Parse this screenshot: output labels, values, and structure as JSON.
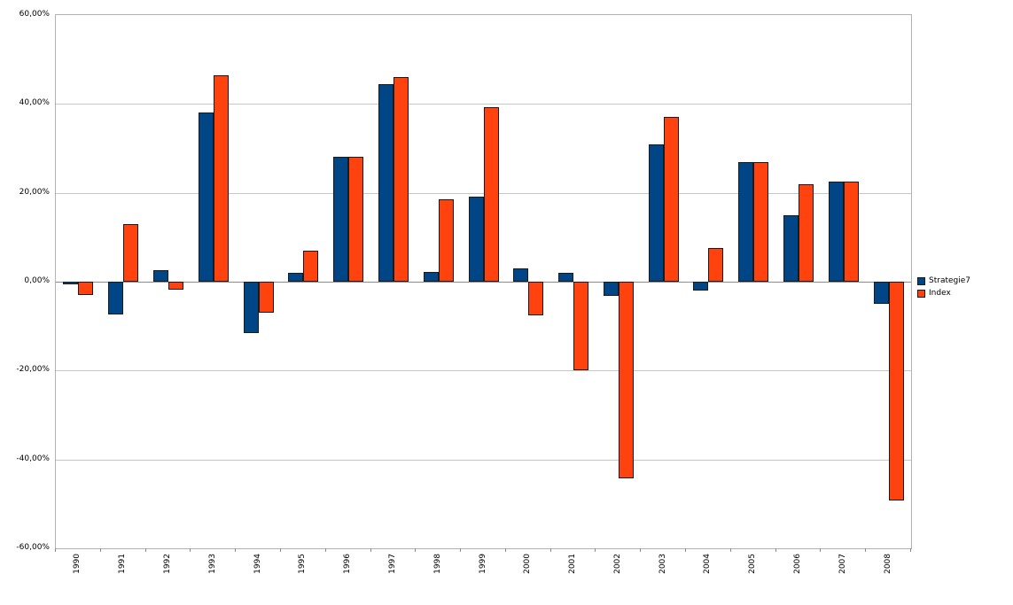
{
  "chart_data": {
    "type": "bar",
    "title": "",
    "categories": [
      "1990",
      "1991",
      "1992",
      "1993",
      "1994",
      "1995",
      "1996",
      "1997",
      "1998",
      "1999",
      "2000",
      "2001",
      "2002",
      "2003",
      "2004",
      "2005",
      "2006",
      "2007",
      "2008"
    ],
    "series": [
      {
        "name": "Strategie7",
        "color": "#004586",
        "values": [
          -0.5,
          -7.3,
          2.5,
          38.0,
          -11.6,
          2.0,
          28.2,
          44.4,
          2.2,
          19.1,
          3.0,
          2.0,
          -3.2,
          30.9,
          -2.0,
          27.0,
          15.0,
          22.5,
          -5.0
        ]
      },
      {
        "name": "Index",
        "color": "#FF420E",
        "values": [
          -3.0,
          13.0,
          -1.8,
          46.4,
          -7.0,
          7.0,
          28.2,
          46.0,
          18.5,
          39.2,
          -7.6,
          -20.0,
          -44.2,
          37.1,
          7.5,
          27.0,
          22.0,
          22.5,
          -49.2
        ]
      }
    ],
    "y_ticks": [
      60,
      40,
      20,
      0,
      -20,
      -40,
      -60
    ],
    "y_tick_labels": [
      "60,00%",
      "40,00%",
      "20,00%",
      "0,00%",
      "-20,00%",
      "-40,00%",
      "-60,00%"
    ],
    "ylim": [
      -60,
      60
    ],
    "grid": true,
    "legend_position": "right",
    "colors": {
      "background": "#ffffff",
      "plot_border": "#b3b3b3",
      "gridline": "#c6c6c6",
      "zero_line": "#8c8c8c",
      "bar_border": "#1a1a1a"
    }
  }
}
